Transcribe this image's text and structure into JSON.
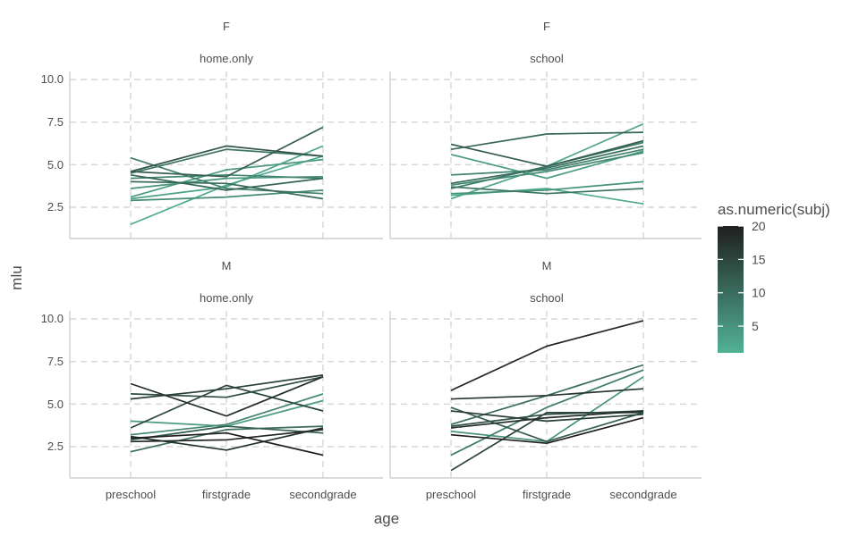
{
  "chart_data": {
    "type": "line",
    "xlabel": "age",
    "ylabel": "mlu",
    "categories": [
      "preschool",
      "firstgrade",
      "secondgrade"
    ],
    "y_ticks": [
      "2.5",
      "5.0",
      "7.5",
      "10.0"
    ],
    "ylim": [
      1.0,
      10.4
    ],
    "grid": true,
    "legend": {
      "title": "as.numeric(subj)",
      "position": "right",
      "ticks": [
        "5",
        "10",
        "15",
        "20"
      ],
      "range": [
        1,
        20
      ],
      "colors": [
        "#52B295",
        "#1F1F1F"
      ]
    },
    "panels": [
      {
        "strip_top": "F",
        "strip_bottom": "home.only",
        "series": [
          {
            "color_value": 2,
            "values": [
              1.5,
              3.8,
              5.5
            ]
          },
          {
            "color_value": 3,
            "values": [
              3.0,
              3.7,
              6.1
            ]
          },
          {
            "color_value": 4,
            "values": [
              3.1,
              4.7,
              5.3
            ]
          },
          {
            "color_value": 5,
            "values": [
              3.6,
              4.2,
              4.3
            ]
          },
          {
            "color_value": 6,
            "values": [
              2.9,
              3.1,
              3.5
            ]
          },
          {
            "color_value": 7,
            "values": [
              4.2,
              4.4,
              4.2
            ]
          },
          {
            "color_value": 8,
            "values": [
              5.4,
              3.6,
              3.3
            ]
          },
          {
            "color_value": 9,
            "values": [
              4.5,
              5.9,
              5.5
            ]
          },
          {
            "color_value": 10,
            "values": [
              4.0,
              3.9,
              3.0
            ]
          },
          {
            "color_value": 11,
            "values": [
              4.4,
              3.5,
              4.2
            ]
          },
          {
            "color_value": 12,
            "values": [
              4.6,
              4.3,
              7.2
            ]
          },
          {
            "color_value": 13,
            "values": [
              4.6,
              6.1,
              5.5
            ]
          }
        ]
      },
      {
        "strip_top": "F",
        "strip_bottom": "school",
        "series": [
          {
            "color_value": 2,
            "values": [
              3.2,
              3.6,
              2.7
            ]
          },
          {
            "color_value": 3,
            "values": [
              3.0,
              4.9,
              7.4
            ]
          },
          {
            "color_value": 4,
            "values": [
              5.6,
              4.2,
              5.8
            ]
          },
          {
            "color_value": 5,
            "values": [
              3.3,
              3.5,
              4.0
            ]
          },
          {
            "color_value": 6,
            "values": [
              3.8,
              4.6,
              5.7
            ]
          },
          {
            "color_value": 7,
            "values": [
              4.4,
              4.7,
              5.9
            ]
          },
          {
            "color_value": 8,
            "values": [
              3.6,
              4.9,
              6.3
            ]
          },
          {
            "color_value": 9,
            "values": [
              3.7,
              3.3,
              3.6
            ]
          },
          {
            "color_value": 10,
            "values": [
              3.9,
              4.8,
              6.1
            ]
          },
          {
            "color_value": 11,
            "values": [
              5.9,
              6.8,
              6.9
            ]
          },
          {
            "color_value": 12,
            "values": [
              6.2,
              4.9,
              6.4
            ]
          }
        ]
      },
      {
        "strip_top": "M",
        "strip_bottom": "home.only",
        "series": [
          {
            "color_value": 4,
            "values": [
              4.0,
              3.7,
              5.2
            ]
          },
          {
            "color_value": 7,
            "values": [
              3.2,
              3.8,
              5.6
            ]
          },
          {
            "color_value": 10,
            "values": [
              2.2,
              3.5,
              3.7
            ]
          },
          {
            "color_value": 12,
            "values": [
              2.9,
              3.7,
              3.3
            ]
          },
          {
            "color_value": 14,
            "values": [
              5.6,
              5.4,
              6.6
            ]
          },
          {
            "color_value": 15,
            "values": [
              3.6,
              6.1,
              4.6
            ]
          },
          {
            "color_value": 16,
            "values": [
              5.3,
              5.9,
              6.7
            ]
          },
          {
            "color_value": 17,
            "values": [
              3.1,
              2.3,
              3.6
            ]
          },
          {
            "color_value": 18,
            "values": [
              6.2,
              4.3,
              6.6
            ]
          },
          {
            "color_value": 19,
            "values": [
              2.8,
              2.9,
              3.5
            ]
          },
          {
            "color_value": 20,
            "values": [
              3.0,
              3.3,
              2.0
            ]
          }
        ]
      },
      {
        "strip_top": "M",
        "strip_bottom": "school",
        "series": [
          {
            "color_value": 5,
            "values": [
              3.4,
              2.8,
              6.6
            ]
          },
          {
            "color_value": 8,
            "values": [
              2.0,
              4.8,
              7.0
            ]
          },
          {
            "color_value": 10,
            "values": [
              3.8,
              5.5,
              7.3
            ]
          },
          {
            "color_value": 12,
            "values": [
              4.8,
              2.8,
              4.5
            ]
          },
          {
            "color_value": 14,
            "values": [
              3.7,
              4.4,
              4.6
            ]
          },
          {
            "color_value": 15,
            "values": [
              1.1,
              4.5,
              4.5
            ]
          },
          {
            "color_value": 16,
            "values": [
              4.6,
              4.0,
              4.4
            ]
          },
          {
            "color_value": 17,
            "values": [
              5.3,
              5.5,
              5.9
            ]
          },
          {
            "color_value": 18,
            "values": [
              3.6,
              4.2,
              4.6
            ]
          },
          {
            "color_value": 19,
            "values": [
              5.8,
              8.4,
              9.9
            ]
          },
          {
            "color_value": 20,
            "values": [
              3.2,
              2.7,
              4.2
            ]
          }
        ]
      }
    ]
  }
}
